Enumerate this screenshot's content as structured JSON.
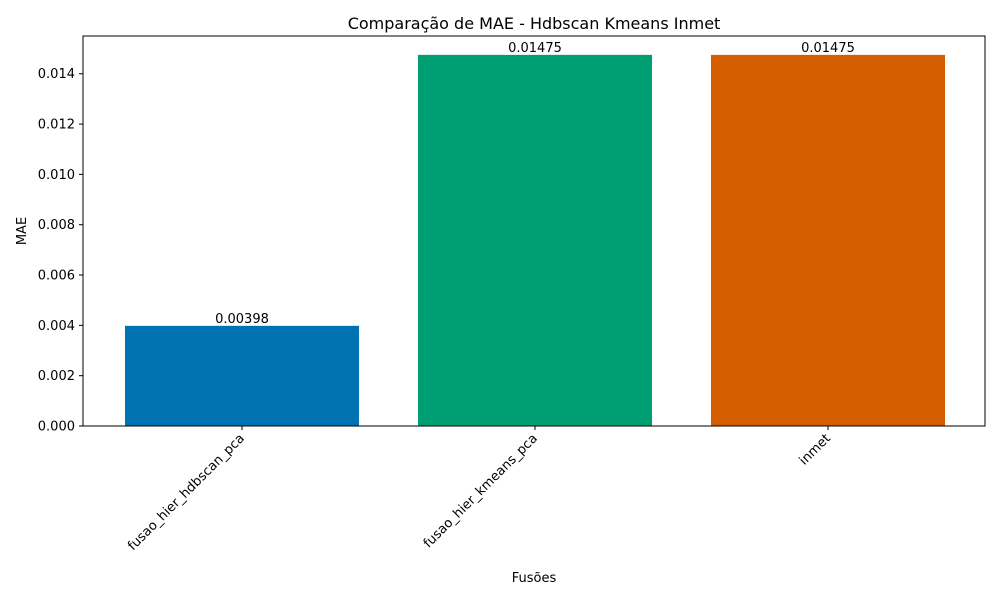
{
  "chart_data": {
    "type": "bar",
    "title": "Comparação de MAE - Hdbscan Kmeans Inmet",
    "xlabel": "Fusões",
    "ylabel": "MAE",
    "categories": [
      "fusao_hier_hdbscan_pca",
      "fusao_hier_kmeans_pca",
      "inmet"
    ],
    "values": [
      0.00398,
      0.01475,
      0.01475
    ],
    "value_labels": [
      "0.00398",
      "0.01475",
      "0.01475"
    ],
    "colors": [
      "#0072b2",
      "#009e73",
      "#d55e00"
    ],
    "ylim": [
      0,
      0.0155
    ],
    "yticks": [
      0,
      0.002,
      0.004,
      0.006,
      0.008,
      0.01,
      0.012,
      0.014
    ],
    "ytick_labels": [
      "0.000",
      "0.002",
      "0.004",
      "0.006",
      "0.008",
      "0.010",
      "0.012",
      "0.014"
    ],
    "grid": false,
    "legend": "none"
  }
}
